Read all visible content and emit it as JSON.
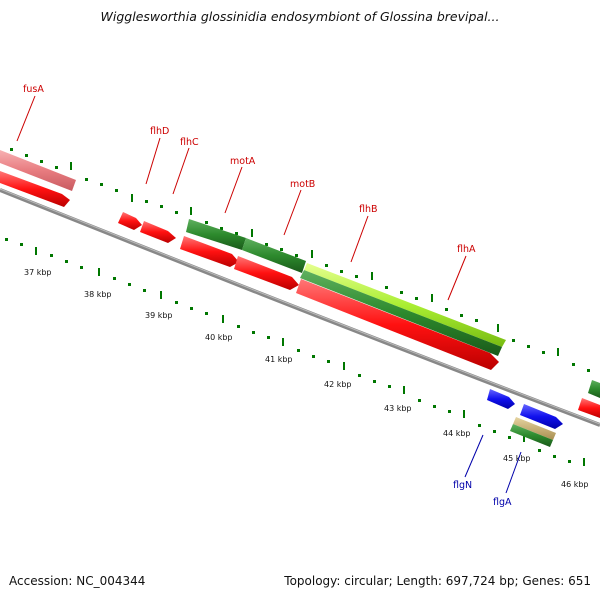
{
  "title": "Wigglesworthia glossinidia endosymbiont of Glossina brevipal...",
  "footer": {
    "accession": "Accession: NC_004344",
    "topology": "Topology: circular; Length: 697,724 bp; Genes: 651"
  },
  "colors": {
    "red_gene": "#ff1111",
    "pink_gene": "#e87c80",
    "dark_green": "#2d8a2d",
    "light_green": "#aaee33",
    "blue_gene": "#1111ee",
    "tan": "#c8b070",
    "label_red": "#cc0000",
    "label_blue": "#0000aa",
    "backbone": "#888888",
    "tick_green": "#007700"
  },
  "scale": {
    "unit": "kbp",
    "labels": [
      "37 kbp",
      "38 kbp",
      "39 kbp",
      "40 kbp",
      "41 kbp",
      "42 kbp",
      "43 kbp",
      "44 kbp",
      "45 kbp",
      "46 kbp"
    ]
  },
  "gene_labels": [
    "fusA",
    "flhD",
    "flhC",
    "motA",
    "motB",
    "flhB",
    "flhA",
    "flgN",
    "flgA"
  ]
}
